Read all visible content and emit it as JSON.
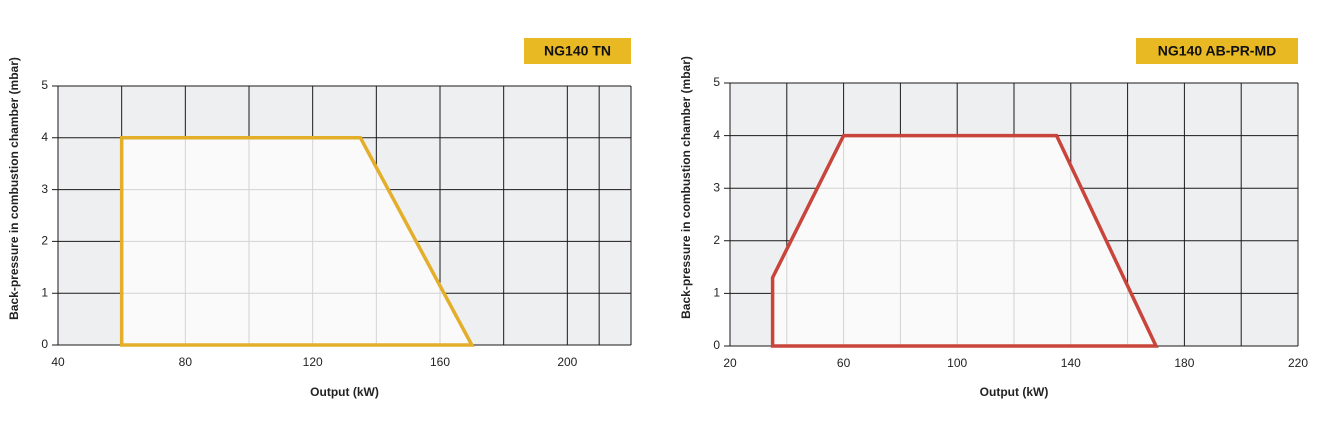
{
  "chart_data": [
    {
      "type": "area",
      "title": "NG140 TN",
      "x_label": "Output (kW)",
      "y_label": "Back-pressure in combustion chamber (mbar)",
      "xlim": [
        40,
        220
      ],
      "xticks": [
        40,
        80,
        120,
        160,
        200
      ],
      "ylim": [
        0,
        5
      ],
      "yticks": [
        0,
        1,
        2,
        3,
        4,
        5
      ],
      "grid": true,
      "series": [
        {
          "color": "#e3ae2a",
          "x": [
            60,
            60,
            135,
            170
          ],
          "values": [
            0,
            4,
            4,
            0
          ]
        }
      ]
    },
    {
      "type": "area",
      "title": "NG140 AB-PR-MD",
      "x_label": "Output (kW)",
      "y_label": "Back-pressure in combustion chamber (mbar)",
      "xlim": [
        20,
        220
      ],
      "xticks": [
        20,
        60,
        100,
        140,
        180,
        220
      ],
      "ylim": [
        0,
        5
      ],
      "yticks": [
        0,
        1,
        2,
        3,
        4,
        5
      ],
      "grid": true,
      "series": [
        {
          "color": "#c9453b",
          "x": [
            35,
            35,
            60,
            135,
            170
          ],
          "values": [
            0,
            1.3,
            4,
            4,
            0
          ]
        }
      ]
    }
  ]
}
